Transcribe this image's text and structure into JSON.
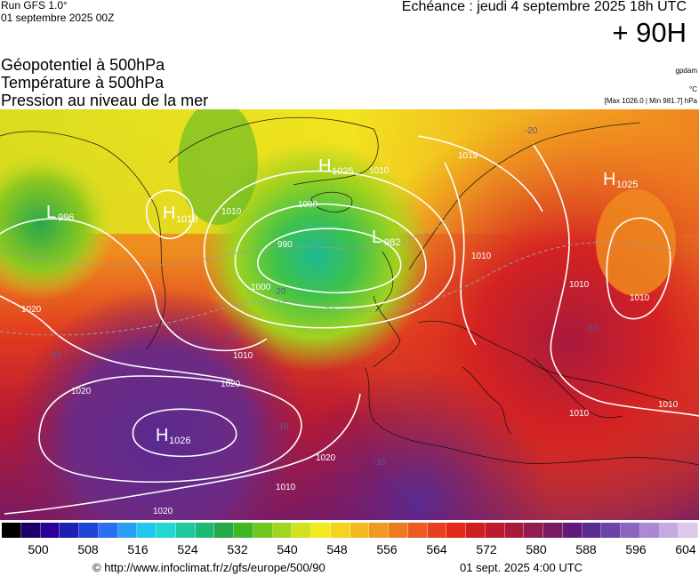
{
  "header": {
    "run_name": "Run GFS 1.0°",
    "run_date": "01 septembre 2025 00Z",
    "valid_time": "Echéance : jeudi 4 septembre 2025 18h UTC",
    "lead_time": "+ 90H"
  },
  "parameters": {
    "geopotential": "Géopotentiel à 500hPa",
    "temperature": "Température à 500hPa",
    "pressure": "Pression au niveau de la mer"
  },
  "units": {
    "geopotential": "gpdam",
    "temperature": "°C",
    "pressure_range": "[Max 1026.0 | Min 981.7] hPa"
  },
  "pressure_centers": [
    {
      "type": "L",
      "value": "996"
    },
    {
      "type": "H",
      "value": "1018"
    },
    {
      "type": "H",
      "value": "1025"
    },
    {
      "type": "L",
      "value": "982"
    },
    {
      "type": "H",
      "value": "1025"
    },
    {
      "type": "H",
      "value": "1026"
    }
  ],
  "isobar_labels": [
    "1020",
    "1010",
    "1010",
    "1000",
    "990",
    "1000",
    "1010",
    "1010",
    "1020",
    "1010",
    "1020",
    "1020",
    "1010",
    "1010",
    "1010",
    "1010",
    "1019"
  ],
  "temperature_labels": [
    "-10",
    "-10",
    "-20",
    "-10",
    "-20",
    "-10",
    "-10"
  ],
  "scale": {
    "tick_labels": [
      "500",
      "508",
      "516",
      "524",
      "532",
      "540",
      "548",
      "556",
      "564",
      "572",
      "580",
      "588",
      "596",
      "604"
    ],
    "colors": [
      "#000000",
      "#1a0066",
      "#2a0099",
      "#1f1fb5",
      "#1f44d6",
      "#2a6ef2",
      "#2a9ef2",
      "#22c7f0",
      "#20d8d0",
      "#20c8a0",
      "#1fb873",
      "#24a84a",
      "#3fb826",
      "#70c81f",
      "#a3d51f",
      "#d2e21f",
      "#f2ea1f",
      "#f5d41f",
      "#f5ba1f",
      "#f29a1f",
      "#ee7a1f",
      "#ec5a1f",
      "#e8401f",
      "#e02a1a",
      "#d01e22",
      "#be1a2e",
      "#a81a3c",
      "#921a4e",
      "#7a1a62",
      "#621a7a",
      "#5a2a90",
      "#6a44a8",
      "#8a66c0",
      "#aa88d2",
      "#c6aade",
      "#dcc8e8"
    ]
  },
  "footer": {
    "url": "© http://www.infoclimat.fr/z/gfs/europe/500/90",
    "generated": "01 sept. 2025  4:00 UTC"
  }
}
